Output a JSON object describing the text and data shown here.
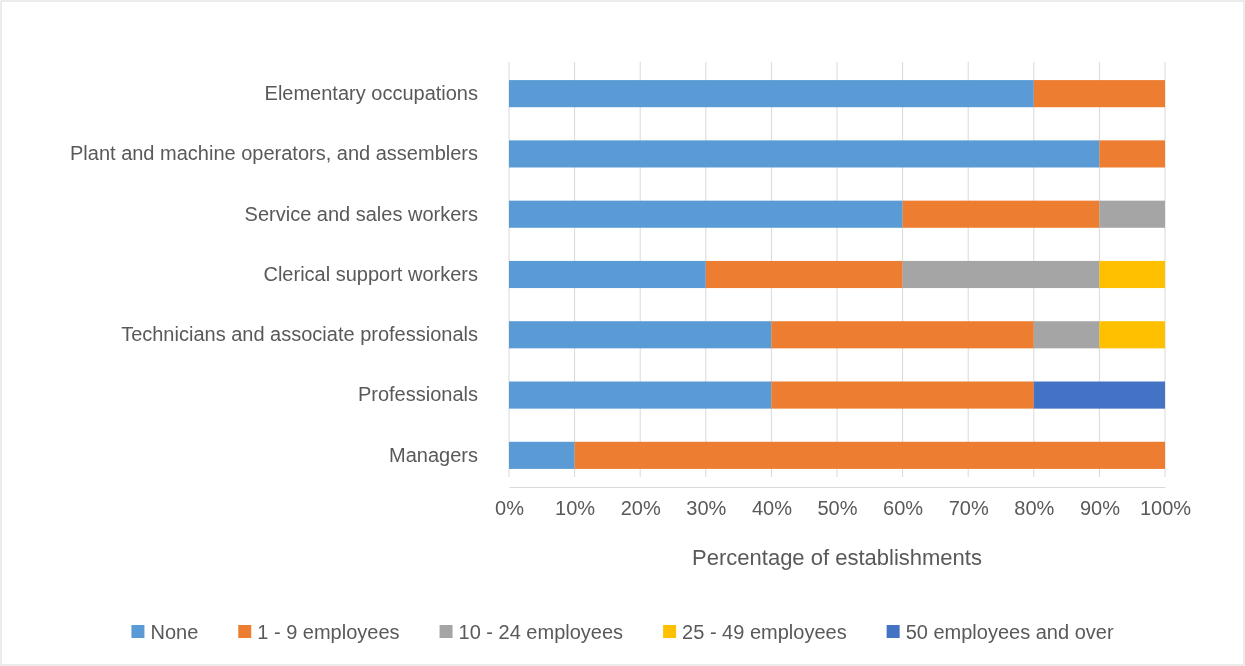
{
  "chart_data": {
    "type": "bar",
    "orientation": "horizontal",
    "stacked": true,
    "xlabel": "Percentage of establishments",
    "categories": [
      "Elementary occupations",
      "Plant and machine operators, and assemblers",
      "Service and sales workers",
      "Clerical support workers",
      "Technicians and associate professionals",
      "Professionals",
      "Managers"
    ],
    "series": [
      {
        "name": "None",
        "color": "#5b9bd5",
        "values": [
          80,
          90,
          60,
          30,
          40,
          40,
          10
        ]
      },
      {
        "name": "1 - 9 employees",
        "color": "#ed7d31",
        "values": [
          20,
          10,
          30,
          30,
          40,
          40,
          90
        ]
      },
      {
        "name": "10 - 24 employees",
        "color": "#a5a5a5",
        "values": [
          0,
          0,
          10,
          30,
          10,
          0,
          0
        ]
      },
      {
        "name": "25 - 49 employees",
        "color": "#ffc000",
        "values": [
          0,
          0,
          0,
          10,
          10,
          0,
          0
        ]
      },
      {
        "name": "50 employees and over",
        "color": "#4472c4",
        "values": [
          0,
          0,
          0,
          0,
          0,
          20,
          0
        ]
      }
    ],
    "xlim": [
      0,
      100
    ],
    "xticks": [
      {
        "value": 0,
        "label": "0%"
      },
      {
        "value": 10,
        "label": "10%"
      },
      {
        "value": 20,
        "label": "20%"
      },
      {
        "value": 30,
        "label": "30%"
      },
      {
        "value": 40,
        "label": "40%"
      },
      {
        "value": 50,
        "label": "50%"
      },
      {
        "value": 60,
        "label": "60%"
      },
      {
        "value": 70,
        "label": "70%"
      },
      {
        "value": 80,
        "label": "80%"
      },
      {
        "value": 90,
        "label": "90%"
      },
      {
        "value": 100,
        "label": "100%"
      }
    ],
    "grid": "x",
    "legend": "bottom"
  }
}
